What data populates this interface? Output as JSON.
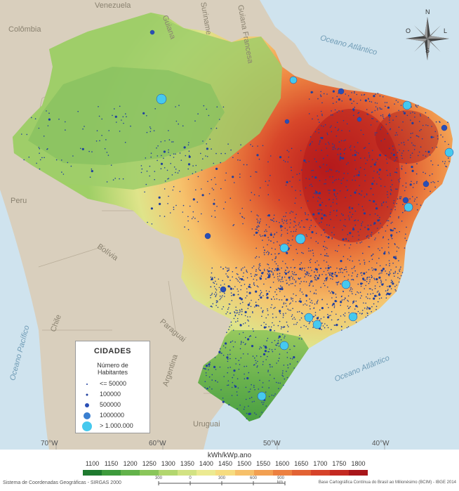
{
  "countries": {
    "venezuela": "Venezuela",
    "guiana": "Guiana",
    "suriname": "Suriname",
    "guiana_francesa": "Guiana Francesa",
    "colombia": "Colômbia",
    "peru": "Peru",
    "bolivia": "Bolívia",
    "chile": "Chile",
    "paraguai": "Paraguai",
    "argentina": "Argentina",
    "uruguai": "Uruguai"
  },
  "oceans": {
    "atlantic_north": "Oceano Atlântico",
    "atlantic_south": "Oceano Atlântico",
    "pacific": "Oceano Pacífico"
  },
  "compass": {
    "n": "N",
    "o": "O",
    "l": "L",
    "s": "S"
  },
  "longitudes": [
    "70°W",
    "60°W",
    "50°W",
    "40°W"
  ],
  "legend": {
    "title": "CIDADES",
    "subtitle_1": "Número de",
    "subtitle_2": "Habitantes",
    "items": [
      {
        "label": "<= 50000",
        "color": "#1f3f9e"
      },
      {
        "label": "100000",
        "color": "#1f3f9e"
      },
      {
        "label": "500000",
        "color": "#2a4fb5"
      },
      {
        "label": "1000000",
        "color": "#3a7fd0"
      },
      {
        "label": "> 1.000.000",
        "color": "#46c9ee"
      }
    ]
  },
  "colorbar": {
    "title": "kWh/kWp.ano",
    "ticks": [
      "1100",
      "1150",
      "1200",
      "1250",
      "1300",
      "1350",
      "1400",
      "1450",
      "1500",
      "1550",
      "1600",
      "1650",
      "1700",
      "1750",
      "1800"
    ],
    "colors": [
      "#1e7a2f",
      "#3d9a3c",
      "#62b24a",
      "#8ac65a",
      "#b2d66e",
      "#d2e283",
      "#ecea92",
      "#f6dc80",
      "#f6c06a",
      "#f2a052",
      "#ec8040",
      "#e26234",
      "#d6432a",
      "#c42a22",
      "#a8161a"
    ]
  },
  "scale": {
    "labels": [
      "300",
      "0",
      "300",
      "600",
      "900 km"
    ]
  },
  "footer": {
    "left": "Sistema de Coordenadas Geográficas - SIRGAS 2000",
    "right": "Base Cartográfica Contínua do Brasil ao Milionésimo (BCIM) - IBGE 2014"
  },
  "colors": {
    "ocean": "#cfe3ee",
    "land_neighbor": "#d9cfbd",
    "city_small": "#1f3f9e",
    "city_large": "#46c9ee"
  }
}
